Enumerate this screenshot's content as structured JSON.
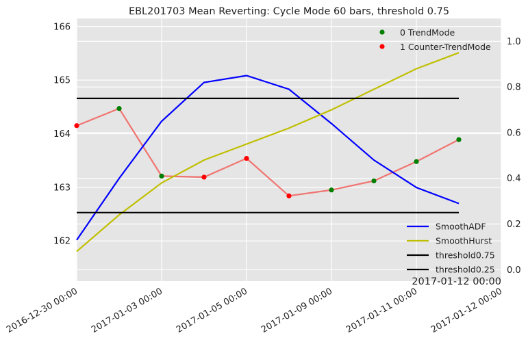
{
  "chart_data": {
    "type": "line",
    "title": "EBL201703 Mean Reverting: Cycle Mode 60 bars, threshold 0.75",
    "x_tick_labels": [
      "2016-12-30 00:00",
      "2017-01-03 00:00",
      "2017-01-05 00:00",
      "2017-01-09 00:00",
      "2017-01-11 00:00",
      "2017-01-12 00:00"
    ],
    "annotation": "2017-01-12 00:00",
    "left_axis": {
      "ylim": [
        161.25,
        166.15
      ],
      "ticks": [
        162,
        163,
        164,
        165,
        166
      ],
      "tick_labels": [
        "162",
        "163",
        "164",
        "165",
        "166"
      ]
    },
    "right_axis": {
      "ylim": [
        -0.05,
        1.1
      ],
      "ticks": [
        0.0,
        0.2,
        0.4,
        0.6,
        0.8,
        1.0
      ],
      "tick_labels": [
        "0.0",
        "0.2",
        "0.4",
        "0.6",
        "0.8",
        "1.0"
      ]
    },
    "grid": true,
    "x_index": [
      0,
      1,
      2,
      3,
      4,
      5,
      6,
      7,
      8,
      9,
      10
    ],
    "price": {
      "axis": "left",
      "color": "#f07470",
      "values": [
        164.15,
        164.47,
        163.21,
        163.19,
        163.54,
        162.84,
        162.95,
        163.12,
        163.48,
        163.89,
        null
      ],
      "modes": [
        1,
        0,
        0,
        1,
        1,
        1,
        0,
        0,
        0,
        0,
        null
      ]
    },
    "series": [
      {
        "name": "SmoothADF",
        "axis": "right",
        "color": "#0000ff",
        "values": [
          0.13,
          0.4,
          0.65,
          0.82,
          0.85,
          0.79,
          0.64,
          0.48,
          0.36,
          0.29
        ]
      },
      {
        "name": "SmoothHurst",
        "axis": "right",
        "color": "#bfbf00",
        "values": [
          0.08,
          0.24,
          0.38,
          0.48,
          0.55,
          0.62,
          0.7,
          0.79,
          0.88,
          0.95
        ]
      },
      {
        "name": "threshold0.75",
        "axis": "right",
        "color": "#000000",
        "values": [
          0.75,
          0.75,
          0.75,
          0.75,
          0.75,
          0.75,
          0.75,
          0.75,
          0.75,
          0.75
        ]
      },
      {
        "name": "threshold0.25",
        "axis": "right",
        "color": "#000000",
        "values": [
          0.25,
          0.25,
          0.25,
          0.25,
          0.25,
          0.25,
          0.25,
          0.25,
          0.25,
          0.25
        ]
      }
    ],
    "scatter_legend": [
      {
        "label": "0 TrendMode",
        "color": "#007f00"
      },
      {
        "label": "1 Counter-TrendMode",
        "color": "#ff0000"
      }
    ],
    "line_legend_placement": "lower-right",
    "scatter_legend_placement": "upper-right",
    "background_color": "#e5e5e5",
    "grid_color": "#ffffff"
  }
}
